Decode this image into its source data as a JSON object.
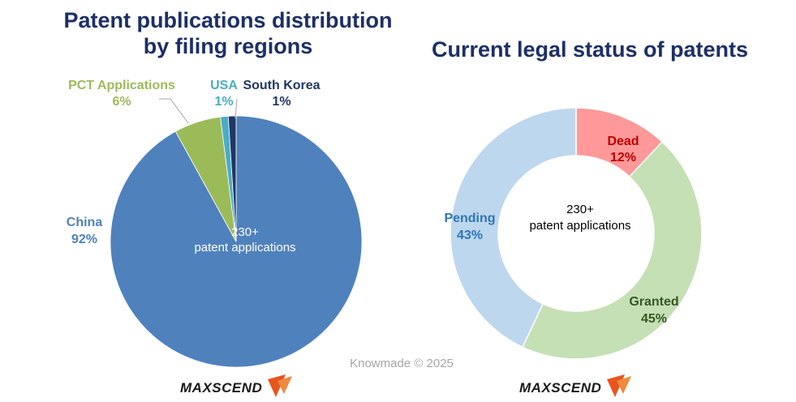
{
  "colors": {
    "title": "#1c2f66",
    "china": "#4f81bd",
    "pct": "#9bbb59",
    "usa": "#4bacc6",
    "south_korea": "#1f3864",
    "pending": "#bdd7ee",
    "dead": "#ff9999",
    "granted": "#c5e0b4",
    "pending_text": "#2e75b6",
    "dead_text": "#c00000",
    "granted_text": "#375623",
    "logo_orange": "#e8541e"
  },
  "chart_data": [
    {
      "type": "pie",
      "title_lines": [
        "Patent publications distribution",
        "by filing regions"
      ],
      "slices": [
        {
          "name": "China",
          "value": 92,
          "label": "92%",
          "color": "#4f81bd"
        },
        {
          "name": "PCT Applications",
          "value": 6,
          "label": "6%",
          "color": "#9bbb59"
        },
        {
          "name": "USA",
          "value": 1,
          "label": "1%",
          "color": "#4bacc6"
        },
        {
          "name": "South Korea",
          "value": 1,
          "label": "1%",
          "color": "#1f3864"
        }
      ],
      "center_lines": [
        "230+",
        "patent applications"
      ]
    },
    {
      "type": "pie",
      "donut": true,
      "title_lines": [
        "Current legal status of patents"
      ],
      "slices": [
        {
          "name": "Dead",
          "value": 12,
          "label": "12%",
          "color": "#ff9999"
        },
        {
          "name": "Granted",
          "value": 45,
          "label": "45%",
          "color": "#c5e0b4"
        },
        {
          "name": "Pending",
          "value": 43,
          "label": "43%",
          "color": "#bdd7ee"
        }
      ],
      "center_lines": [
        "230+",
        "patent applications"
      ]
    }
  ],
  "credit": "Knowmade © 2025",
  "logo": {
    "text": "MAXSCEND"
  }
}
